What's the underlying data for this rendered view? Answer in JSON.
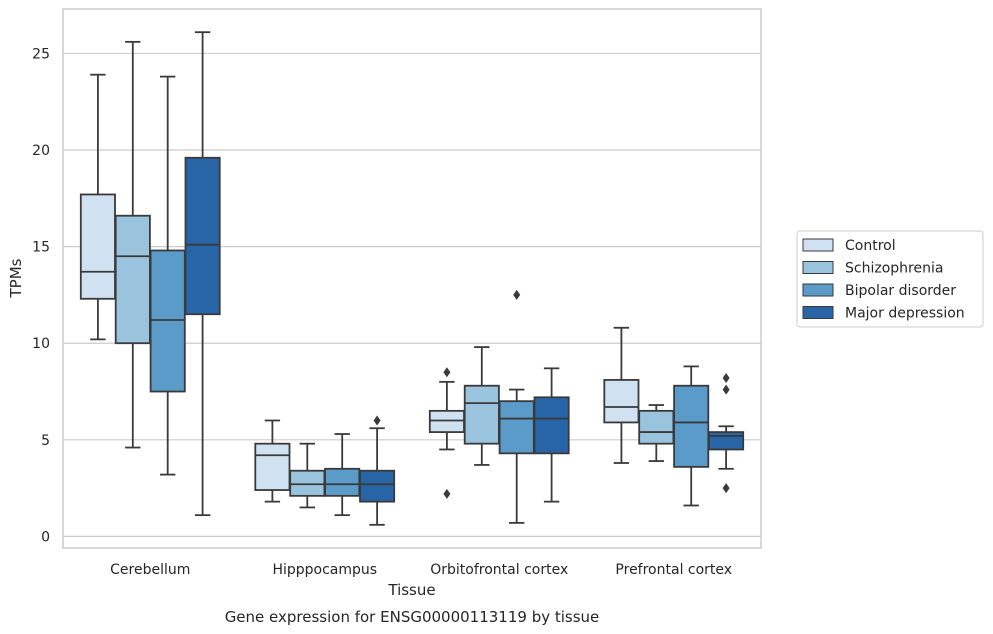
{
  "chart_data": {
    "type": "box",
    "xlabel": "Tissue",
    "ylabel": "TPMs",
    "caption": "Gene expression for ENSG00000113119 by tissue",
    "ylim": [
      -0.6,
      27.3
    ],
    "yticks": [
      0,
      5,
      10,
      15,
      20,
      25
    ],
    "grid": "horizontal",
    "legend_position": "right",
    "categories": [
      "Cerebellum",
      "Hipppocampus",
      "Orbitofrontal cortex",
      "Prefrontal cortex"
    ],
    "series": [
      {
        "name": "Control",
        "color": "#d0e1f2",
        "boxes": [
          {
            "whisker_low": 10.2,
            "q1": 12.3,
            "median": 13.7,
            "q3": 17.7,
            "whisker_high": 23.9,
            "outliers": []
          },
          {
            "whisker_low": 1.8,
            "q1": 2.4,
            "median": 4.2,
            "q3": 4.8,
            "whisker_high": 6.0,
            "outliers": []
          },
          {
            "whisker_low": 4.5,
            "q1": 5.4,
            "median": 6.0,
            "q3": 6.5,
            "whisker_high": 8.0,
            "outliers": [
              8.5,
              2.2
            ]
          },
          {
            "whisker_low": 3.8,
            "q1": 5.9,
            "median": 6.7,
            "q3": 8.1,
            "whisker_high": 10.8,
            "outliers": []
          }
        ]
      },
      {
        "name": "Schizophrenia",
        "color": "#9ac4dd",
        "boxes": [
          {
            "whisker_low": 4.6,
            "q1": 10.0,
            "median": 14.5,
            "q3": 16.6,
            "whisker_high": 25.6,
            "outliers": []
          },
          {
            "whisker_low": 1.5,
            "q1": 2.1,
            "median": 2.7,
            "q3": 3.4,
            "whisker_high": 4.8,
            "outliers": []
          },
          {
            "whisker_low": 3.7,
            "q1": 4.8,
            "median": 6.9,
            "q3": 7.8,
            "whisker_high": 9.8,
            "outliers": []
          },
          {
            "whisker_low": 3.9,
            "q1": 4.8,
            "median": 5.4,
            "q3": 6.5,
            "whisker_high": 6.8,
            "outliers": []
          }
        ]
      },
      {
        "name": "Bipolar disorder",
        "color": "#5a9bc9",
        "boxes": [
          {
            "whisker_low": 3.2,
            "q1": 7.5,
            "median": 11.2,
            "q3": 14.8,
            "whisker_high": 23.8,
            "outliers": []
          },
          {
            "whisker_low": 1.1,
            "q1": 2.1,
            "median": 2.7,
            "q3": 3.5,
            "whisker_high": 5.3,
            "outliers": []
          },
          {
            "whisker_low": 0.7,
            "q1": 4.3,
            "median": 6.1,
            "q3": 7.0,
            "whisker_high": 7.6,
            "outliers": [
              12.5
            ]
          },
          {
            "whisker_low": 1.6,
            "q1": 3.6,
            "median": 5.9,
            "q3": 7.8,
            "whisker_high": 8.8,
            "outliers": []
          }
        ]
      },
      {
        "name": "Major depression",
        "color": "#2765a7",
        "boxes": [
          {
            "whisker_low": 1.1,
            "q1": 11.5,
            "median": 15.1,
            "q3": 19.6,
            "whisker_high": 26.1,
            "outliers": []
          },
          {
            "whisker_low": 0.6,
            "q1": 1.8,
            "median": 2.7,
            "q3": 3.4,
            "whisker_high": 5.6,
            "outliers": [
              6.0
            ]
          },
          {
            "whisker_low": 1.8,
            "q1": 4.3,
            "median": 6.1,
            "q3": 7.2,
            "whisker_high": 8.7,
            "outliers": []
          },
          {
            "whisker_low": 3.5,
            "q1": 4.5,
            "median": 5.2,
            "q3": 5.4,
            "whisker_high": 5.7,
            "outliers": [
              8.2,
              7.6,
              2.5
            ]
          }
        ]
      }
    ]
  }
}
